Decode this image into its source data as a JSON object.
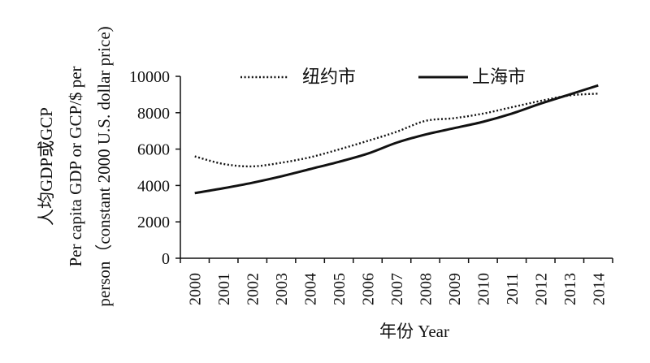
{
  "chart_data": {
    "type": "line",
    "title": "",
    "x": [
      "2000",
      "2001",
      "2002",
      "2003",
      "2004",
      "2005",
      "2006",
      "2007",
      "2008",
      "2009",
      "2010",
      "2011",
      "2012",
      "2013",
      "2014"
    ],
    "series": [
      {
        "name": "纽约市",
        "style": "dotted",
        "color": "#111111",
        "values": [
          5600,
          5180,
          5050,
          5250,
          5550,
          5980,
          6450,
          6950,
          7550,
          7700,
          7950,
          8300,
          8650,
          8950,
          9050
        ]
      },
      {
        "name": "上海市",
        "style": "solid",
        "color": "#111111",
        "values": [
          3580,
          3850,
          4150,
          4500,
          4900,
          5300,
          5750,
          6350,
          6800,
          7150,
          7500,
          7950,
          8500,
          9000,
          9500
        ]
      }
    ],
    "xlabel": "年份 Year",
    "ylabel_lines": [
      "人均GDP或GCP",
      "Per capita GDP or GCP/$ per",
      "person（constant 2000 U.S. dollar price)"
    ],
    "y_ticks": [
      "0",
      "2000",
      "4000",
      "6000",
      "8000",
      "10000"
    ],
    "ylim": [
      0,
      10000
    ],
    "legend_position": "top",
    "grid": false
  }
}
